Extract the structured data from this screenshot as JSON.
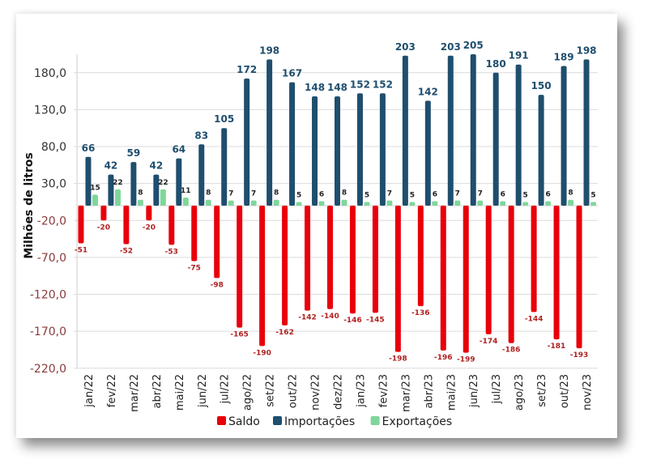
{
  "chart_data": {
    "type": "bar",
    "title": "",
    "xlabel": "",
    "ylabel": "Milhões de litros",
    "ylim": [
      -220,
      205
    ],
    "yticks": [
      180,
      130,
      80,
      30,
      -20,
      -70,
      -120,
      -170,
      -220
    ],
    "ytick_labels": [
      "180,0",
      "130,0",
      "80,0",
      "30,0",
      "-20,0",
      "-70,0",
      "-120,0",
      "-170,0",
      "-220,0"
    ],
    "grid": true,
    "legend_position": "bottom",
    "categories": [
      "jan/22",
      "fev/22",
      "mar/22",
      "abr/22",
      "mai/22",
      "jun/22",
      "jul/22",
      "ago/22",
      "set/22",
      "out/22",
      "nov/22",
      "dez/22",
      "jan/23",
      "fev/23",
      "mar/23",
      "abr/23",
      "mai/23",
      "jun/23",
      "jul/23",
      "ago/23",
      "set/23",
      "out/23",
      "nov/23"
    ],
    "series": [
      {
        "name": "Saldo",
        "color": "#e8000b",
        "values": [
          -51,
          -20,
          -52,
          -20,
          -53,
          -75,
          -98,
          -165,
          -190,
          -162,
          -142,
          -140,
          -146,
          -145,
          -198,
          -136,
          -196,
          -199,
          -174,
          -186,
          -144,
          -181,
          -193
        ]
      },
      {
        "name": "Importações",
        "color": "#1f4e6e",
        "values": [
          66,
          42,
          59,
          42,
          64,
          83,
          105,
          172,
          198,
          167,
          148,
          148,
          152,
          152,
          203,
          142,
          203,
          205,
          180,
          191,
          150,
          189,
          198
        ]
      },
      {
        "name": "Exportações",
        "color": "#7fd69a",
        "values": [
          15,
          22,
          8,
          22,
          11,
          8,
          7,
          7,
          8,
          5,
          6,
          8,
          5,
          7,
          5,
          6,
          7,
          7,
          6,
          5,
          6,
          8,
          5
        ]
      }
    ]
  }
}
